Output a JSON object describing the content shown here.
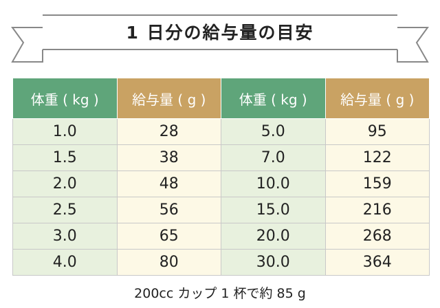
{
  "header": {
    "title": "1 日分の給与量の目安"
  },
  "table": {
    "columns": [
      "体重 ( kg )",
      "給与量 ( g )",
      "体重 ( kg )",
      "給与量 ( g )"
    ],
    "rows": [
      [
        "1.0",
        "28",
        "5.0",
        "95"
      ],
      [
        "1.5",
        "38",
        "7.0",
        "122"
      ],
      [
        "2.0",
        "48",
        "10.0",
        "159"
      ],
      [
        "2.5",
        "56",
        "15.0",
        "216"
      ],
      [
        "3.0",
        "65",
        "20.0",
        "268"
      ],
      [
        "4.0",
        "80",
        "30.0",
        "364"
      ]
    ]
  },
  "footer": {
    "note": "200cc カップ 1 杯で約 85 g"
  }
}
